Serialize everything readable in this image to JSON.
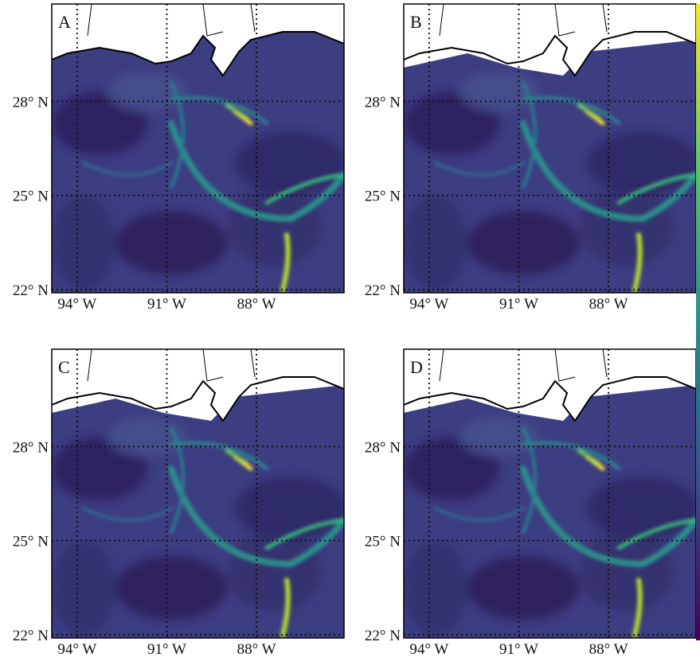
{
  "map": {
    "panels": [
      "A",
      "B",
      "C",
      "D"
    ],
    "lat_ticks": [
      {
        "value": 22,
        "label": "22° N"
      },
      {
        "value": 25,
        "label": "25° N"
      },
      {
        "value": 28,
        "label": "28° N"
      }
    ],
    "lon_ticks": [
      {
        "value": -94,
        "label": "94° W"
      },
      {
        "value": -91,
        "label": "91° W"
      },
      {
        "value": -88,
        "label": "88° W"
      }
    ],
    "lat_lim": [
      21.9,
      31.1
    ],
    "lon_lim": [
      -94.85,
      -85.07
    ],
    "colorbar": [
      "#440154",
      "#3b528b",
      "#21918c",
      "#5ec962",
      "#fde725"
    ]
  }
}
